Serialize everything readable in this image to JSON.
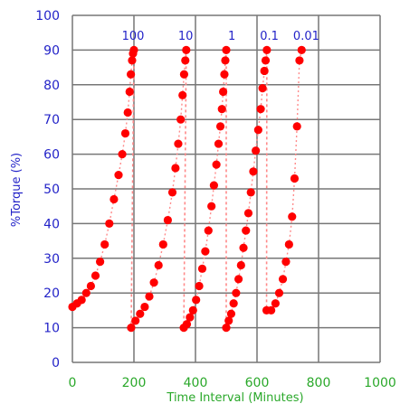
{
  "chart_data": {
    "type": "scatter",
    "title": "",
    "xlabel": "Time Interval (Minutes)",
    "ylabel": "%Torque (%)",
    "xlim": [
      0,
      1000
    ],
    "ylim": [
      0,
      100
    ],
    "xticks": [
      "0",
      "200",
      "400",
      "600",
      "800",
      "1000"
    ],
    "yticks": [
      "0",
      "10",
      "20",
      "30",
      "40",
      "50",
      "60",
      "70",
      "80",
      "90",
      "100"
    ],
    "grid": true,
    "legend": "none",
    "annotations": [
      {
        "text": "100",
        "x": 197,
        "y": 94
      },
      {
        "text": "10",
        "x": 368,
        "y": 94
      },
      {
        "text": "1",
        "x": 518,
        "y": 94
      },
      {
        "text": "0.1",
        "x": 640,
        "y": 94
      },
      {
        "text": "0.01",
        "x": 760,
        "y": 94
      }
    ],
    "series": [
      {
        "x": [
          0,
          15,
          30,
          45,
          60,
          75,
          90,
          105,
          120,
          135,
          150,
          162,
          172,
          180,
          186,
          190,
          194,
          197,
          200
        ],
        "y": [
          16,
          17,
          18,
          20,
          22,
          25,
          29,
          34,
          40,
          47,
          54,
          60,
          66,
          72,
          78,
          83,
          87,
          89,
          90
        ],
        "fall": [
          191,
          10
        ]
      },
      {
        "x": [
          191,
          205,
          220,
          235,
          250,
          265,
          280,
          295,
          310,
          325,
          335,
          344,
          352,
          358,
          363,
          367,
          370
        ],
        "y": [
          10,
          12,
          14,
          16,
          19,
          23,
          28,
          34,
          41,
          49,
          56,
          63,
          70,
          77,
          83,
          87,
          90
        ],
        "fall": [
          362,
          10
        ]
      },
      {
        "x": [
          362,
          372,
          382,
          392,
          402,
          412,
          422,
          432,
          442,
          452,
          460,
          468,
          475,
          481,
          486,
          490,
          494,
          497,
          500
        ],
        "y": [
          10,
          11,
          13,
          15,
          18,
          22,
          27,
          32,
          38,
          45,
          51,
          57,
          63,
          68,
          73,
          78,
          83,
          87,
          90
        ],
        "fall": [
          500,
          10
        ]
      },
      {
        "x": [
          500,
          508,
          516,
          524,
          532,
          540,
          548,
          556,
          564,
          572,
          580,
          588,
          596,
          604,
          612,
          618,
          624,
          628,
          632
        ],
        "y": [
          10,
          12,
          14,
          17,
          20,
          24,
          28,
          33,
          38,
          43,
          49,
          55,
          61,
          67,
          73,
          79,
          84,
          87,
          90
        ],
        "fall": [
          631,
          15
        ]
      },
      {
        "x": [
          631,
          646,
          660,
          672,
          684,
          694,
          704,
          714,
          722,
          730,
          738,
          745
        ],
        "y": [
          15,
          15,
          17,
          20,
          24,
          29,
          34,
          42,
          53,
          68,
          87,
          90
        ]
      }
    ],
    "colors": {
      "marker": "#ff0000",
      "dashed": "#ff8a8a",
      "grid": "#777777",
      "axis_text": "#2323c8",
      "x_text": "#2aa82a"
    }
  }
}
